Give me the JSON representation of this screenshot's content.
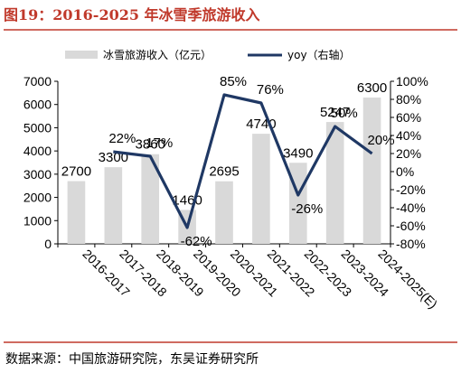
{
  "title": "图19：2016-2025 年冰雪季旅游收入",
  "source": "数据来源：中国旅游研究院，东吴证券研究所",
  "colors": {
    "title": "#c0392b",
    "bar": "#d9d9d9",
    "line": "#1f3864",
    "axis": "#000000",
    "rule": "#c0392b"
  },
  "chart_data": {
    "type": "bar",
    "categories": [
      "2016-2017",
      "2017-2018",
      "2018-2019",
      "2019-2020",
      "2020-2021",
      "2021-2022",
      "2022-2023",
      "2023-2024",
      "2024-2025(E)"
    ],
    "series": [
      {
        "name": "冰雪旅游收入（亿元）",
        "type": "bar",
        "axis": "left",
        "values": [
          2700,
          3300,
          3860,
          1460,
          2695,
          4740,
          3490,
          5247,
          6300
        ],
        "labels": [
          "2700",
          "3300",
          "3860",
          "1460",
          "2695",
          "4740",
          "3490",
          "5247",
          "6300"
        ]
      },
      {
        "name": "yoy（右轴）",
        "type": "line",
        "axis": "right",
        "values": [
          null,
          22,
          17,
          -62,
          85,
          76,
          -26,
          50,
          20
        ],
        "labels": [
          "",
          "22%",
          "17%",
          "-62%",
          "85%",
          "76%",
          "-26%",
          "50%",
          "20%"
        ]
      }
    ],
    "y_left": {
      "min": 0,
      "max": 7000,
      "ticks": [
        "0",
        "1000",
        "2000",
        "3000",
        "4000",
        "5000",
        "6000",
        "7000"
      ]
    },
    "y_right": {
      "min": -80,
      "max": 100,
      "ticks": [
        "-80%",
        "-60%",
        "-40%",
        "-20%",
        "0%",
        "20%",
        "40%",
        "60%",
        "80%",
        "100%"
      ]
    },
    "legend_position": "top",
    "grid": false
  }
}
